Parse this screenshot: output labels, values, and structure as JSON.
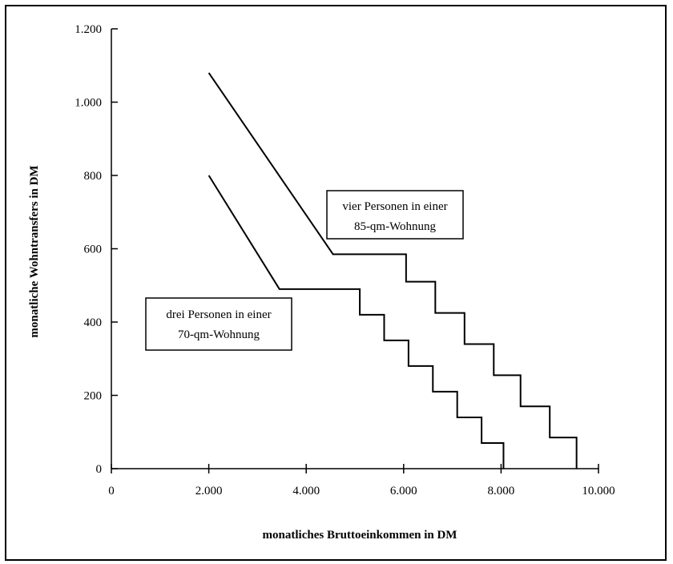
{
  "chart_data": {
    "type": "line",
    "xlabel": "monatliches Bruttoeinkommen in DM",
    "ylabel": "monatliche Wohntransfers in DM",
    "xlim": [
      0,
      10000
    ],
    "ylim": [
      0,
      1200
    ],
    "xticks": [
      {
        "value": 0,
        "label": "0"
      },
      {
        "value": 2000,
        "label": "2.000"
      },
      {
        "value": 4000,
        "label": "4.000"
      },
      {
        "value": 6000,
        "label": "6.000"
      },
      {
        "value": 8000,
        "label": "8.000"
      },
      {
        "value": 10000,
        "label": "10.000"
      }
    ],
    "yticks": [
      {
        "value": 0,
        "label": "0"
      },
      {
        "value": 200,
        "label": "200"
      },
      {
        "value": 400,
        "label": "400"
      },
      {
        "value": 600,
        "label": "600"
      },
      {
        "value": 800,
        "label": "800"
      },
      {
        "value": 1000,
        "label": "1.000"
      },
      {
        "value": 1200,
        "label": "1.200"
      }
    ],
    "grid": false,
    "series": [
      {
        "annotation": [
          "vier Personen in einer",
          "85-qm-Wohnung"
        ],
        "points": [
          [
            2000,
            1080
          ],
          [
            4550,
            585
          ],
          [
            6050,
            585
          ],
          [
            6050,
            510
          ],
          [
            6650,
            510
          ],
          [
            6650,
            425
          ],
          [
            7250,
            425
          ],
          [
            7250,
            340
          ],
          [
            7850,
            340
          ],
          [
            7850,
            255
          ],
          [
            8400,
            255
          ],
          [
            8400,
            170
          ],
          [
            9000,
            170
          ],
          [
            9000,
            85
          ],
          [
            9550,
            85
          ],
          [
            9550,
            0
          ]
        ]
      },
      {
        "annotation": [
          "drei Personen in einer",
          "70-qm-Wohnung"
        ],
        "points": [
          [
            2000,
            800
          ],
          [
            3450,
            490
          ],
          [
            5100,
            490
          ],
          [
            5100,
            420
          ],
          [
            5600,
            420
          ],
          [
            5600,
            350
          ],
          [
            6100,
            350
          ],
          [
            6100,
            280
          ],
          [
            6600,
            280
          ],
          [
            6600,
            210
          ],
          [
            7100,
            210
          ],
          [
            7100,
            140
          ],
          [
            7600,
            140
          ],
          [
            7600,
            70
          ],
          [
            8050,
            70
          ],
          [
            8050,
            0
          ]
        ]
      }
    ]
  }
}
